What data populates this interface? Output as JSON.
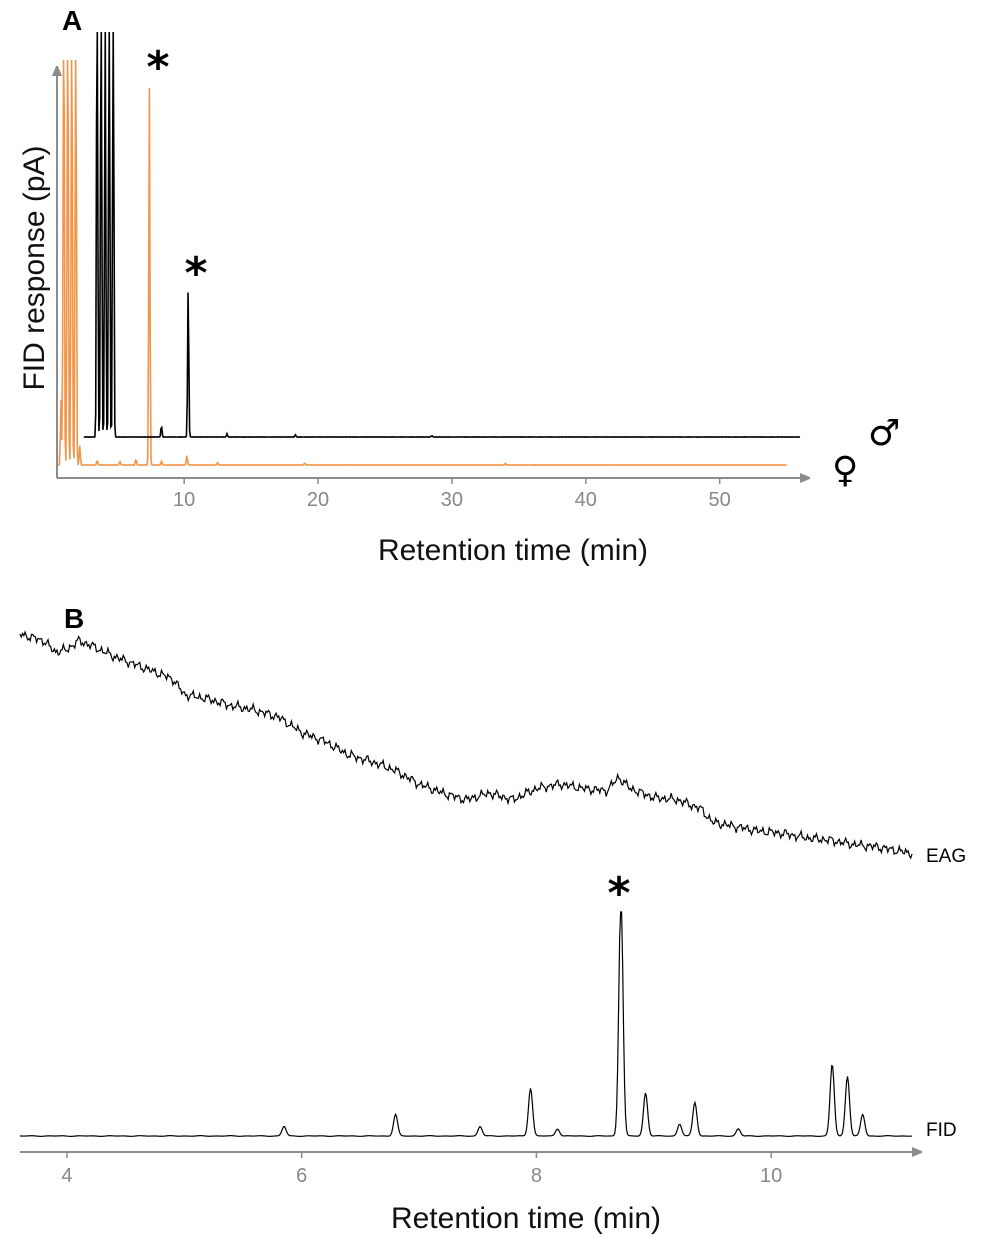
{
  "figure": {
    "panel_a_label": "A",
    "panel_b_label": "B"
  },
  "chart_data": [
    {
      "type": "line",
      "panel": "A",
      "ylabel": "FID response (pA)",
      "xlabel": "Retention time (min)",
      "xticks": [
        10,
        20,
        30,
        40,
        50
      ],
      "xlim": [
        0.5,
        56
      ],
      "annotations": [
        "*",
        "*"
      ],
      "colors": {
        "male": "#000000",
        "female": "#f0964a",
        "axis": "#8c8c8c"
      },
      "series": [
        {
          "name": "♂",
          "color": "#000000",
          "peaks": [
            {
              "rt": 3.5,
              "height": 1.6
            },
            {
              "rt": 3.8,
              "height": 1.6
            },
            {
              "rt": 4.1,
              "height": 1.3
            },
            {
              "rt": 4.4,
              "height": 1.6
            },
            {
              "rt": 4.7,
              "height": 1.6
            },
            {
              "rt": 8.3,
              "height": 0.03
            },
            {
              "rt": 10.3,
              "height": 0.4
            },
            {
              "rt": 13.2,
              "height": 0.008
            },
            {
              "rt": 18.3,
              "height": 0.006
            },
            {
              "rt": 28.5,
              "height": 0.004
            }
          ],
          "start": 2.5,
          "end": 56
        },
        {
          "name": "♀",
          "color": "#f0964a",
          "peaks": [
            {
              "rt": 0.8,
              "height": 0.17
            },
            {
              "rt": 1.0,
              "height": 1.6
            },
            {
              "rt": 1.3,
              "height": 1.6
            },
            {
              "rt": 1.6,
              "height": 1.6
            },
            {
              "rt": 1.9,
              "height": 1.6
            },
            {
              "rt": 2.2,
              "height": 0.05
            },
            {
              "rt": 3.5,
              "height": 0.012
            },
            {
              "rt": 5.2,
              "height": 0.01
            },
            {
              "rt": 6.4,
              "height": 0.015
            },
            {
              "rt": 7.4,
              "height": 0.98
            },
            {
              "rt": 8.3,
              "height": 0.01
            },
            {
              "rt": 10.2,
              "height": 0.025
            },
            {
              "rt": 12.5,
              "height": 0.006
            },
            {
              "rt": 19.0,
              "height": 0.005
            },
            {
              "rt": 34.0,
              "height": 0.004
            }
          ],
          "start": 0.5,
          "end": 55
        }
      ]
    },
    {
      "type": "line",
      "panel": "B",
      "xlabel": "Retention time (min)",
      "xticks": [
        4,
        6,
        8,
        10
      ],
      "xlim": [
        3.6,
        11.2
      ],
      "annotations": [
        "*"
      ],
      "colors": {
        "trace": "#000000",
        "axis": "#8c8c8c"
      },
      "series": [
        {
          "name": "EAG",
          "color": "#000000",
          "points": [
            [
              3.6,
              1.0
            ],
            [
              3.8,
              0.97
            ],
            [
              3.9,
              0.92
            ],
            [
              4.0,
              0.93
            ],
            [
              4.1,
              0.97
            ],
            [
              4.2,
              0.95
            ],
            [
              4.4,
              0.9
            ],
            [
              4.6,
              0.86
            ],
            [
              4.8,
              0.82
            ],
            [
              4.9,
              0.8
            ],
            [
              5.0,
              0.73
            ],
            [
              5.2,
              0.71
            ],
            [
              5.4,
              0.68
            ],
            [
              5.6,
              0.66
            ],
            [
              5.8,
              0.63
            ],
            [
              6.0,
              0.56
            ],
            [
              6.2,
              0.52
            ],
            [
              6.4,
              0.46
            ],
            [
              6.6,
              0.43
            ],
            [
              6.8,
              0.39
            ],
            [
              7.0,
              0.33
            ],
            [
              7.2,
              0.29
            ],
            [
              7.4,
              0.26
            ],
            [
              7.6,
              0.29
            ],
            [
              7.8,
              0.26
            ],
            [
              8.0,
              0.31
            ],
            [
              8.2,
              0.33
            ],
            [
              8.4,
              0.31
            ],
            [
              8.6,
              0.3
            ],
            [
              8.7,
              0.36
            ],
            [
              8.8,
              0.31
            ],
            [
              9.0,
              0.27
            ],
            [
              9.2,
              0.26
            ],
            [
              9.4,
              0.22
            ],
            [
              9.5,
              0.16
            ],
            [
              9.7,
              0.14
            ],
            [
              9.9,
              0.12
            ],
            [
              10.1,
              0.11
            ],
            [
              10.3,
              0.09
            ],
            [
              10.5,
              0.08
            ],
            [
              10.7,
              0.06
            ],
            [
              10.9,
              0.05
            ],
            [
              11.1,
              0.03
            ],
            [
              11.2,
              0.02
            ]
          ]
        },
        {
          "name": "FID",
          "color": "#000000",
          "peaks": [
            {
              "rt": 5.85,
              "height": 0.04
            },
            {
              "rt": 6.8,
              "height": 0.09
            },
            {
              "rt": 7.52,
              "height": 0.04
            },
            {
              "rt": 7.95,
              "height": 0.2
            },
            {
              "rt": 8.18,
              "height": 0.03
            },
            {
              "rt": 8.72,
              "height": 1.0
            },
            {
              "rt": 8.93,
              "height": 0.18
            },
            {
              "rt": 9.22,
              "height": 0.05
            },
            {
              "rt": 9.35,
              "height": 0.14
            },
            {
              "rt": 9.72,
              "height": 0.03
            },
            {
              "rt": 10.52,
              "height": 0.3
            },
            {
              "rt": 10.65,
              "height": 0.25
            },
            {
              "rt": 10.78,
              "height": 0.09
            }
          ],
          "start": 3.6,
          "end": 11.2
        }
      ]
    }
  ]
}
